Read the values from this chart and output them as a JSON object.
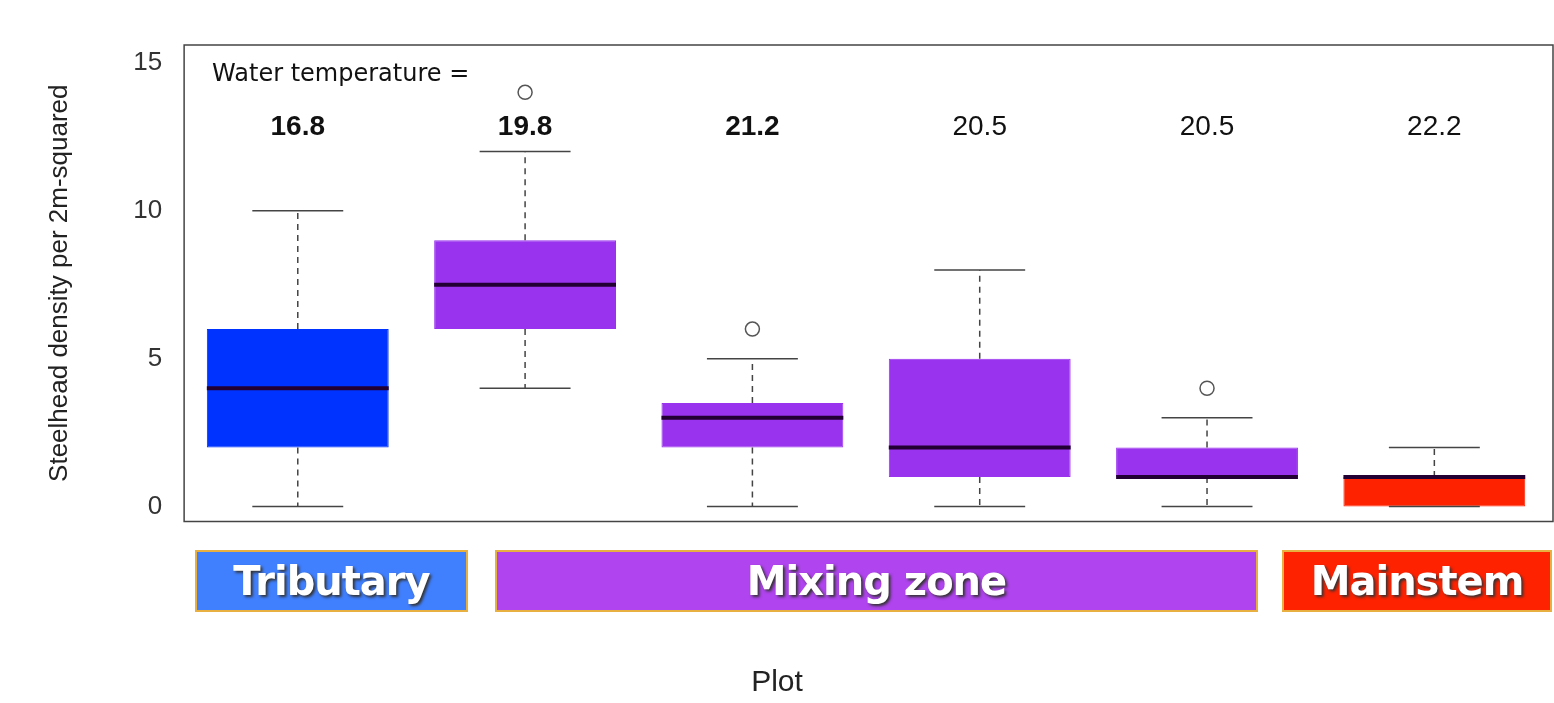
{
  "chart_data": {
    "type": "box",
    "ylabel": "Steelhead density per 2m-squared",
    "xlabel": "Plot",
    "categories": [
      "16.8",
      "19.8",
      "21.2",
      "20.5",
      "20.5",
      "22.2"
    ],
    "colors": [
      "#0033ff",
      "#9933ee",
      "#9933ee",
      "#9933ee",
      "#9933ee",
      "#ff2200"
    ],
    "boxes": [
      {
        "low": 0,
        "q1": 2,
        "median": 4,
        "q3": 6,
        "high": 10
      },
      {
        "low": 4,
        "q1": 6,
        "median": 7.5,
        "q3": 9,
        "high": 12,
        "outliers": [
          14
        ]
      },
      {
        "low": 0,
        "q1": 2,
        "median": 3,
        "q3": 3.5,
        "high": 5,
        "outliers": [
          6
        ]
      },
      {
        "low": 0,
        "q1": 1,
        "median": 2,
        "q3": 5,
        "high": 8
      },
      {
        "low": 0,
        "q1": 1,
        "median": 1,
        "q3": 2,
        "high": 3,
        "outliers": [
          4
        ]
      },
      {
        "low": 0,
        "q1": 0,
        "median": 1,
        "q3": 1,
        "high": 2
      }
    ],
    "ylim": [
      -0.5,
      15.6
    ],
    "yticks": [
      0,
      5,
      10,
      15
    ],
    "grid": false,
    "legend": false,
    "annotations": [
      "Water temperature =",
      "Tributary",
      "Mixing zone",
      "Mainstem"
    ]
  }
}
